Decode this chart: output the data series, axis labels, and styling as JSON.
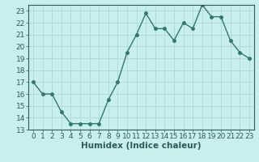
{
  "x": [
    0,
    1,
    2,
    3,
    4,
    5,
    6,
    7,
    8,
    9,
    10,
    11,
    12,
    13,
    14,
    15,
    16,
    17,
    18,
    19,
    20,
    21,
    22,
    23
  ],
  "y": [
    17,
    16,
    16,
    14.5,
    13.5,
    13.5,
    13.5,
    13.5,
    15.5,
    17,
    19.5,
    21,
    22.8,
    21.5,
    21.5,
    20.5,
    22,
    21.5,
    23.5,
    22.5,
    22.5,
    20.5,
    19.5,
    19
  ],
  "line_color": "#2d7a6e",
  "bg_color": "#c8eeee",
  "grid_color": "#b0d8d8",
  "xlabel": "Humidex (Indice chaleur)",
  "xlim": [
    -0.5,
    23.5
  ],
  "ylim": [
    13,
    23.5
  ],
  "yticks": [
    13,
    14,
    15,
    16,
    17,
    18,
    19,
    20,
    21,
    22,
    23
  ],
  "xticks": [
    0,
    1,
    2,
    3,
    4,
    5,
    6,
    7,
    8,
    9,
    10,
    11,
    12,
    13,
    14,
    15,
    16,
    17,
    18,
    19,
    20,
    21,
    22,
    23
  ],
  "marker": "o",
  "marker_size": 2.5,
  "line_width": 1.0,
  "font_size": 6.5,
  "xlabel_fontsize": 7.5
}
